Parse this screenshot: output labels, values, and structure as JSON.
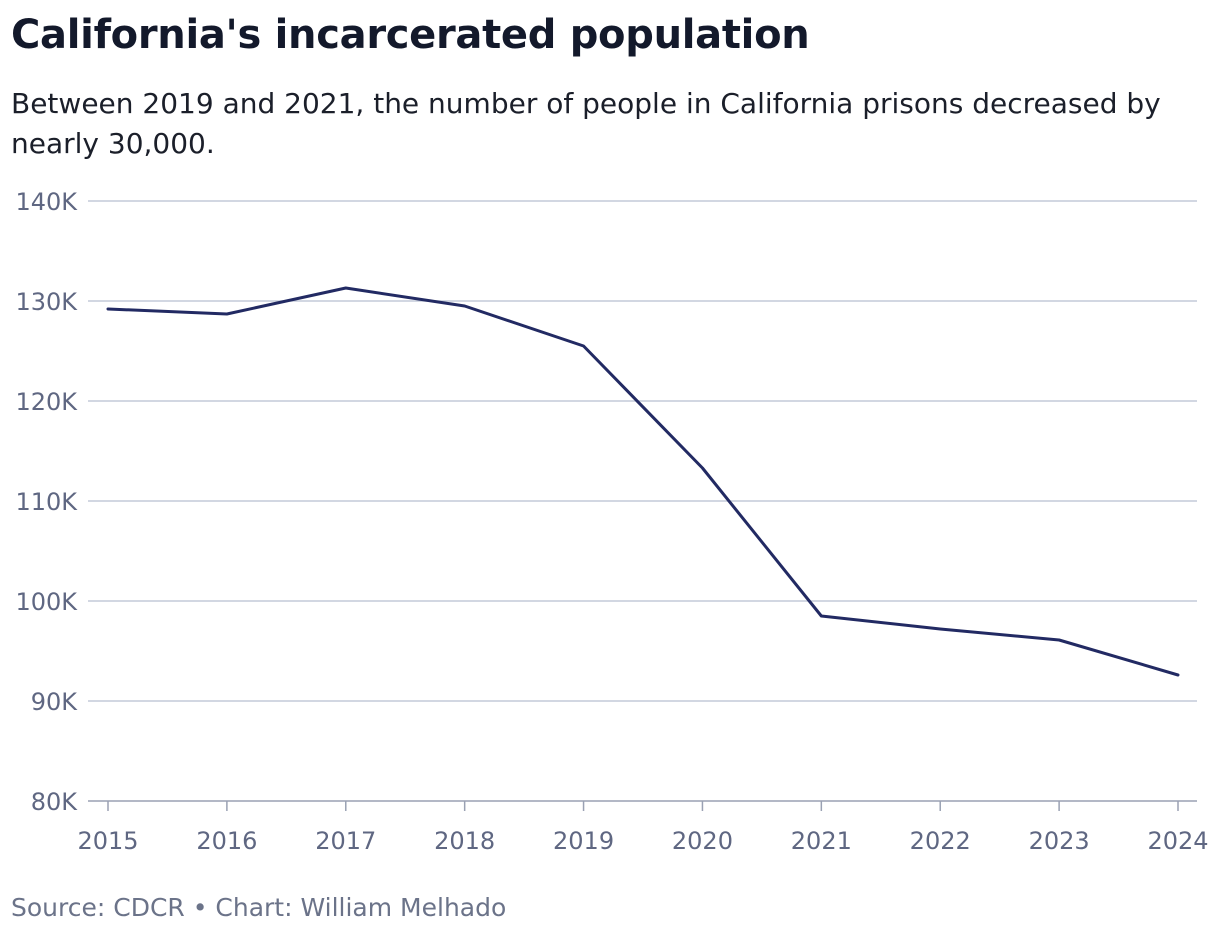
{
  "header": {
    "title": "California's incarcerated population",
    "subtitle": "Between 2019 and 2021, the number of people in California prisons decreased by nearly 30,000."
  },
  "footer": {
    "source": "Source: CDCR • Chart: William Melhado"
  },
  "colors": {
    "line": "#222a63",
    "grid": "#c3cad8",
    "axis": "#9aa1b3",
    "tick_text": "#5f6782"
  },
  "chart_data": {
    "type": "line",
    "x": [
      "2015",
      "2016",
      "2017",
      "2018",
      "2019",
      "2020",
      "2021",
      "2022",
      "2023",
      "2024"
    ],
    "series": [
      {
        "values": [
          129200,
          128700,
          131300,
          129500,
          125500,
          113300,
          98500,
          97200,
          96100,
          92600
        ]
      }
    ],
    "ylim": [
      80000,
      140000
    ],
    "yticks": [
      80000,
      90000,
      100000,
      110000,
      120000,
      130000,
      140000
    ],
    "ytick_labels": [
      "80K",
      "90K",
      "100K",
      "110K",
      "120K",
      "130K",
      "140K"
    ],
    "grid": true,
    "xlabel": "",
    "ylabel": ""
  }
}
